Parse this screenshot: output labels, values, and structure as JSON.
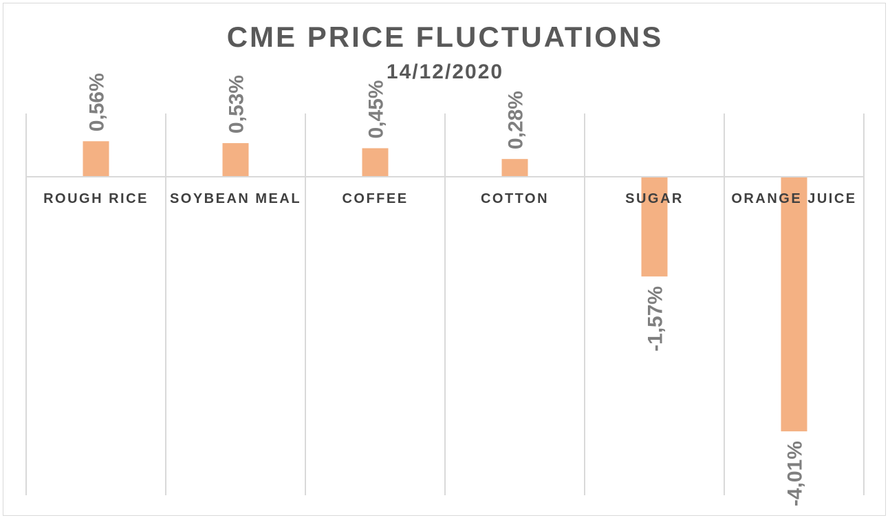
{
  "chart_data": {
    "type": "bar",
    "title": "CME PRICE FLUCTUATIONS",
    "subtitle": "14/12/2020",
    "categories": [
      "ROUGH RICE",
      "SOYBEAN MEAL",
      "COFFEE",
      "COTTON",
      "SUGAR",
      "ORANGE JUICE"
    ],
    "values": [
      0.56,
      0.53,
      0.45,
      0.28,
      -1.57,
      -4.01
    ],
    "value_labels": [
      "0,56%",
      "0,53%",
      "0,45%",
      "0,28%",
      "-1,57%",
      "-4,01%"
    ],
    "unit": "%",
    "ylim": [
      -4.99,
      1.0
    ],
    "grid": "vertical category separators",
    "legend": "none",
    "colors": {
      "bar": "#f4b183",
      "grid": "#d9d9d9",
      "text": "#595959",
      "label": "#7f7f7f"
    }
  }
}
